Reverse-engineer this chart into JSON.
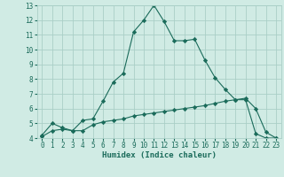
{
  "xlabel": "Humidex (Indice chaleur)",
  "x_ticks": [
    0,
    1,
    2,
    3,
    4,
    5,
    6,
    7,
    8,
    9,
    10,
    11,
    12,
    13,
    14,
    15,
    16,
    17,
    18,
    19,
    20,
    21,
    22,
    23
  ],
  "y_ticks": [
    4,
    5,
    6,
    7,
    8,
    9,
    10,
    11,
    12,
    13
  ],
  "xlim": [
    -0.5,
    23.5
  ],
  "ylim": [
    4,
    13
  ],
  "line1_x": [
    0,
    1,
    2,
    3,
    4,
    5,
    6,
    7,
    8,
    9,
    10,
    11,
    12,
    13,
    14,
    15,
    16,
    17,
    18,
    19,
    20,
    21,
    22,
    23
  ],
  "line1_y": [
    4.2,
    5.0,
    4.7,
    4.5,
    5.2,
    5.3,
    6.5,
    7.8,
    8.4,
    11.2,
    12.0,
    13.0,
    11.9,
    10.6,
    10.6,
    10.7,
    9.3,
    8.1,
    7.3,
    6.6,
    6.7,
    6.0,
    4.4,
    4.0
  ],
  "line2_x": [
    0,
    1,
    2,
    3,
    4,
    5,
    6,
    7,
    8,
    9,
    10,
    11,
    12,
    13,
    14,
    15,
    16,
    17,
    18,
    19,
    20,
    21,
    22,
    23
  ],
  "line2_y": [
    4.1,
    4.5,
    4.6,
    4.5,
    4.5,
    4.9,
    5.1,
    5.2,
    5.3,
    5.5,
    5.6,
    5.7,
    5.8,
    5.9,
    6.0,
    6.1,
    6.2,
    6.35,
    6.5,
    6.6,
    6.6,
    4.3,
    4.0,
    4.0
  ],
  "line_color": "#1a6b5a",
  "bg_color": "#d0ebe4",
  "grid_color": "#aacfc7",
  "marker": "D",
  "marker_size": 2.2,
  "label_fontsize": 6.5,
  "tick_fontsize": 5.5
}
